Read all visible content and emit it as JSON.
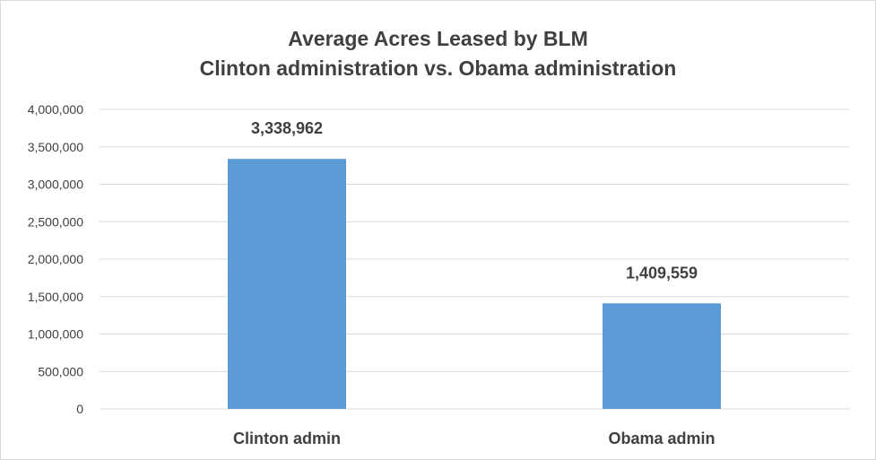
{
  "chart_data": {
    "type": "bar",
    "title": "Average Acres Leased by BLM",
    "subtitle": "Clinton administration vs. Obama administration",
    "categories": [
      "Clinton admin",
      "Obama admin"
    ],
    "values": [
      3338962,
      1409559
    ],
    "data_labels": [
      "3,338,962",
      "1,409,559"
    ],
    "ylim": [
      0,
      4000000
    ],
    "yticks": [
      0,
      500000,
      1000000,
      1500000,
      2000000,
      2500000,
      3000000,
      3500000,
      4000000
    ],
    "ytick_labels": [
      "0",
      "500,000",
      "1,000,000",
      "1,500,000",
      "2,000,000",
      "2,500,000",
      "3,000,000",
      "3,500,000",
      "4,000,000"
    ],
    "grid": true,
    "legend": "none",
    "bar_color": "#5b9bd5",
    "grid_color": "#d9d9d9",
    "text_color": "#404040"
  }
}
